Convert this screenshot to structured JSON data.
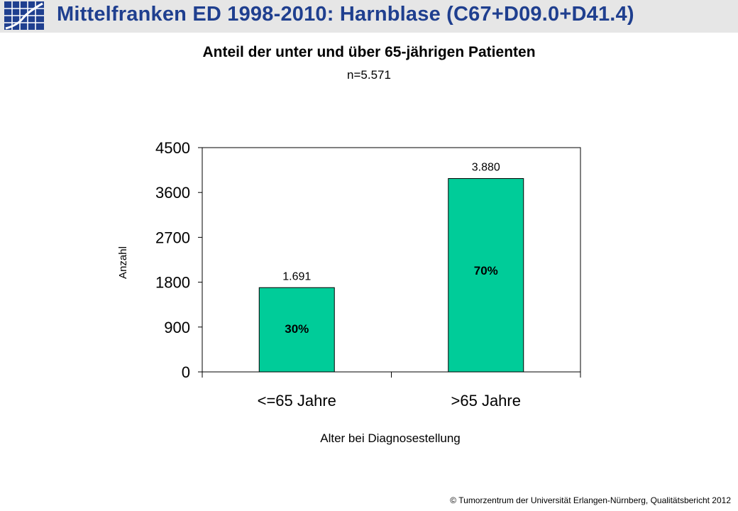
{
  "header": {
    "title": "Mittelfranken ED 1998-2010: Harnblase   (C67+D09.0+D41.4)",
    "logo_icon": "survival-curve-grid-logo"
  },
  "colors": {
    "title": "#1f3f8f",
    "bar": "#00cc99",
    "header_bg": "#e6e6e6"
  },
  "footer": {
    "text": "© Tumorzentrum  der Universität Erlangen-Nürnberg,  Qualitätsbericht 2012"
  },
  "chart_data": {
    "type": "bar",
    "title": "Anteil der unter und über 65-jährigen Patienten",
    "subtitle": "n=5.571",
    "xlabel": "Alter bei Diagnosestellung",
    "ylabel": "Anzahl",
    "categories": [
      "<=65 Jahre",
      ">65 Jahre"
    ],
    "values": [
      1691,
      3880
    ],
    "value_labels": [
      "1.691",
      "3.880"
    ],
    "percent_labels": [
      "30%",
      "70%"
    ],
    "ylim": [
      0,
      4500
    ],
    "yticks": [
      0,
      900,
      1800,
      2700,
      3600,
      4500
    ],
    "grid": false,
    "legend": "none"
  }
}
